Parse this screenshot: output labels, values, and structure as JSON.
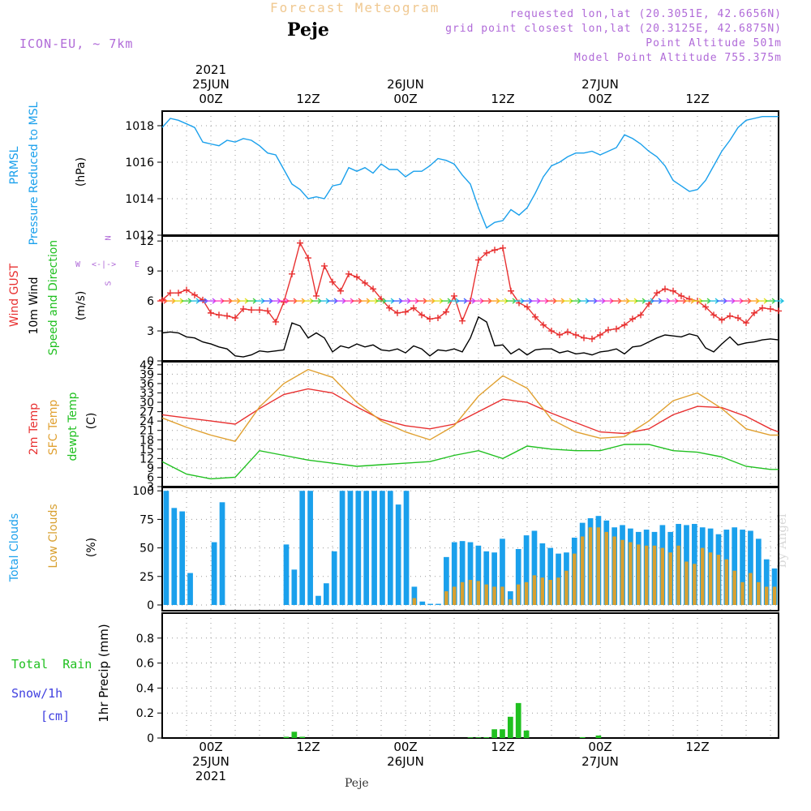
{
  "header": {
    "title_top": "Forecast Meteogram",
    "station": "Peje",
    "model": "ICON-EU, ~ 7km",
    "requested": "requested lon,lat (20.3051E, 42.6656N)",
    "grid_point": "grid point closest lon,lat (20.3125E, 42.6875N)",
    "point_altitude": "Point Altitude 501m",
    "model_altitude": "Model Point Altitude 755.375m"
  },
  "footer": {
    "station": "Peje",
    "credit": "by Angel"
  },
  "time_axis": {
    "top": [
      {
        "label": [
          "2021",
          "25JUN",
          "00Z"
        ],
        "h": 6
      },
      {
        "label": [
          "12Z"
        ],
        "h": 18
      },
      {
        "label": [
          "26JUN",
          "00Z"
        ],
        "h": 30
      },
      {
        "label": [
          "12Z"
        ],
        "h": 42
      },
      {
        "label": [
          "27JUN",
          "00Z"
        ],
        "h": 54
      },
      {
        "label": [
          "12Z"
        ],
        "h": 66
      }
    ],
    "bottom": [
      {
        "label": [
          "00Z",
          "25JUN",
          "2021"
        ],
        "h": 6
      },
      {
        "label": [
          "12Z"
        ],
        "h": 18
      },
      {
        "label": [
          "00Z",
          "26JUN"
        ],
        "h": 30
      },
      {
        "label": [
          "12Z"
        ],
        "h": 42
      },
      {
        "label": [
          "00Z",
          "27JUN"
        ],
        "h": 54
      },
      {
        "label": [
          "12Z"
        ],
        "h": 66
      }
    ]
  },
  "panel_labels": {
    "pressure": [
      {
        "text": "PRMSL",
        "color": "#1aa0ec"
      },
      {
        "text": "Pressure Reduced to MSL",
        "color": "#1aa0ec"
      },
      {
        "text": "(hPa)",
        "color": "#000000"
      }
    ],
    "wind": [
      {
        "text": "Wind GUST",
        "color": "#e83030"
      },
      {
        "text": "10m Wind",
        "color": "#000000"
      },
      {
        "text": "Speed and Direction",
        "color": "#20c020"
      },
      {
        "text": "(m/s)",
        "color": "#000000"
      }
    ],
    "wind_compass": {
      "top": "N",
      "left": "W",
      "arrow": "<-|->",
      "right": "E",
      "bottom": "S"
    },
    "temp": [
      {
        "text": "2m Temp",
        "color": "#e83030"
      },
      {
        "text": "SFC Temp",
        "color": "#e0a030"
      },
      {
        "text": "dewpt Temp",
        "color": "#20c020"
      },
      {
        "text": "(C)",
        "color": "#000000"
      }
    ],
    "clouds": [
      {
        "text": "Total Clouds",
        "color": "#1aa0ec"
      },
      {
        "text": "Low Clouds",
        "color": "#d8a030"
      },
      {
        "text": "(%)",
        "color": "#000000"
      }
    ],
    "precip_left": [
      {
        "text": "Total  Rain",
        "color": "#20c020"
      },
      {
        "text": "Snow/1h",
        "color": "#4040e0"
      },
      {
        "text": "[cm]",
        "color": "#4040e0"
      }
    ],
    "precip_axis": "1hr Precip (mm)"
  },
  "chart_data": [
    {
      "type": "line",
      "panel": "pressure",
      "x_unit": "hours since 2021-06-24 18Z",
      "y_ticks": [
        1012,
        1014,
        1016,
        1018
      ],
      "ylim": [
        1012,
        1018.8
      ],
      "series": [
        {
          "name": "PRMSL",
          "color": "#1aa0ec",
          "x": [
            0,
            1,
            2,
            3,
            4,
            5,
            6,
            7,
            8,
            9,
            10,
            11,
            12,
            13,
            14,
            15,
            16,
            17,
            18,
            19,
            20,
            21,
            22,
            23,
            24,
            25,
            26,
            27,
            28,
            29,
            30,
            31,
            32,
            33,
            34,
            35,
            36,
            37,
            38,
            39,
            40,
            41,
            42,
            43,
            44,
            45,
            46,
            47,
            48,
            49,
            50,
            51,
            52,
            53,
            54,
            55,
            56,
            57,
            58,
            59,
            60,
            61,
            62,
            63,
            64,
            65,
            66,
            67,
            68,
            69,
            70,
            71,
            72,
            73,
            74,
            75,
            76
          ],
          "y": [
            1017.9,
            1018.4,
            1018.3,
            1018.1,
            1017.9,
            1017.1,
            1017.0,
            1016.9,
            1017.2,
            1017.1,
            1017.3,
            1017.2,
            1016.9,
            1016.5,
            1016.4,
            1015.6,
            1014.8,
            1014.5,
            1014.0,
            1014.1,
            1014.0,
            1014.7,
            1014.8,
            1015.7,
            1015.5,
            1015.7,
            1015.4,
            1015.9,
            1015.6,
            1015.6,
            1015.2,
            1015.5,
            1015.5,
            1015.8,
            1016.2,
            1016.1,
            1015.9,
            1015.3,
            1014.8,
            1013.5,
            1012.4,
            1012.7,
            1012.8,
            1013.4,
            1013.1,
            1013.5,
            1014.3,
            1015.2,
            1015.8,
            1016.0,
            1016.3,
            1016.5,
            1016.5,
            1016.6,
            1016.4,
            1016.6,
            1016.8,
            1017.5,
            1017.3,
            1017.0,
            1016.6,
            1016.3,
            1015.8,
            1015.0,
            1014.7,
            1014.4,
            1014.5,
            1015.0,
            1015.8,
            1016.6,
            1017.2,
            1017.9,
            1018.3,
            1018.4,
            1018.5,
            1018.5,
            1018.5
          ]
        }
      ]
    },
    {
      "type": "line",
      "panel": "wind",
      "y_ticks": [
        0,
        3,
        6,
        9,
        12
      ],
      "ylim": [
        0,
        12.5
      ],
      "series": [
        {
          "name": "Wind GUST",
          "color": "#e83030",
          "marker": "+",
          "x": [
            0,
            1,
            2,
            3,
            4,
            5,
            6,
            7,
            8,
            9,
            10,
            11,
            12,
            13,
            14,
            15,
            16,
            17,
            18,
            19,
            20,
            21,
            22,
            23,
            24,
            25,
            26,
            27,
            28,
            29,
            30,
            31,
            32,
            33,
            34,
            35,
            36,
            37,
            38,
            39,
            40,
            41,
            42,
            43,
            44,
            45,
            46,
            47,
            48,
            49,
            50,
            51,
            52,
            53,
            54,
            55,
            56,
            57,
            58,
            59,
            60,
            61,
            62,
            63,
            64,
            65,
            66,
            67,
            68,
            69,
            70,
            71,
            72,
            73,
            74,
            75,
            76
          ],
          "y": [
            6.1,
            6.8,
            6.8,
            7.1,
            6.6,
            6.1,
            4.8,
            4.6,
            4.5,
            4.3,
            5.2,
            5.1,
            5.1,
            5.0,
            3.9,
            5.9,
            8.7,
            11.8,
            10.3,
            6.5,
            9.5,
            7.9,
            7.0,
            8.7,
            8.4,
            7.8,
            7.2,
            6.2,
            5.3,
            4.8,
            4.9,
            5.3,
            4.6,
            4.2,
            4.3,
            4.9,
            6.5,
            4.0,
            6.0,
            10.1,
            10.8,
            11.1,
            11.3,
            7.0,
            5.8,
            5.4,
            4.4,
            3.6,
            3.0,
            2.6,
            2.9,
            2.6,
            2.3,
            2.2,
            2.6,
            3.1,
            3.2,
            3.6,
            4.2,
            4.6,
            5.7,
            6.8,
            7.2,
            7.0,
            6.5,
            6.2,
            6.0,
            5.4,
            4.6,
            4.1,
            4.5,
            4.3,
            3.8,
            4.8,
            5.3,
            5.2,
            5.0
          ]
        },
        {
          "name": "10m Wind",
          "color": "#000000",
          "x": [
            0,
            1,
            2,
            3,
            4,
            5,
            6,
            7,
            8,
            9,
            10,
            11,
            12,
            13,
            14,
            15,
            16,
            17,
            18,
            19,
            20,
            21,
            22,
            23,
            24,
            25,
            26,
            27,
            28,
            29,
            30,
            31,
            32,
            33,
            34,
            35,
            36,
            37,
            38,
            39,
            40,
            41,
            42,
            43,
            44,
            45,
            46,
            47,
            48,
            49,
            50,
            51,
            52,
            53,
            54,
            55,
            56,
            57,
            58,
            59,
            60,
            61,
            62,
            63,
            64,
            65,
            66,
            67,
            68,
            69,
            70,
            71,
            72,
            73,
            74,
            75,
            76
          ],
          "y": [
            2.8,
            2.9,
            2.8,
            2.4,
            2.3,
            1.9,
            1.7,
            1.4,
            1.2,
            0.5,
            0.4,
            0.6,
            1.0,
            0.9,
            1.0,
            1.1,
            3.8,
            3.5,
            2.3,
            2.8,
            2.3,
            0.9,
            1.5,
            1.3,
            1.7,
            1.4,
            1.6,
            1.1,
            1.0,
            1.2,
            0.8,
            1.5,
            1.2,
            0.5,
            1.1,
            1.0,
            1.2,
            0.9,
            2.3,
            4.4,
            3.9,
            1.5,
            1.6,
            0.7,
            1.2,
            0.6,
            1.1,
            1.2,
            1.2,
            0.8,
            1.0,
            0.7,
            0.8,
            0.6,
            0.9,
            1.0,
            1.2,
            0.7,
            1.4,
            1.5,
            1.9,
            2.3,
            2.6,
            2.5,
            2.4,
            2.7,
            2.5,
            1.3,
            0.9,
            1.7,
            2.4,
            1.6,
            1.8,
            1.9,
            2.1,
            2.2,
            2.1
          ]
        }
      ]
    },
    {
      "type": "line",
      "panel": "temperature",
      "y_ticks": [
        3,
        6,
        9,
        12,
        15,
        18,
        21,
        24,
        27,
        30,
        33,
        36,
        39,
        42
      ],
      "ylim": [
        3,
        43
      ],
      "series": [
        {
          "name": "2m Temp",
          "color": "#e83030",
          "x": [
            0,
            3,
            6,
            9,
            12,
            15,
            18,
            21,
            24,
            27,
            30,
            33,
            36,
            39,
            42,
            45,
            48,
            51,
            54,
            57,
            60,
            63,
            66,
            69,
            72,
            75,
            76
          ],
          "y": [
            26.0,
            25.0,
            24.0,
            23.0,
            28.0,
            32.5,
            34.3,
            33.0,
            28.5,
            24.5,
            22.5,
            21.5,
            23.0,
            27.0,
            31.0,
            30.0,
            26.5,
            23.5,
            20.5,
            20.0,
            21.5,
            26.0,
            28.7,
            28.3,
            25.5,
            21.5,
            20.5
          ]
        },
        {
          "name": "SFC Temp",
          "color": "#e0a030",
          "x": [
            0,
            3,
            6,
            9,
            12,
            15,
            18,
            21,
            24,
            27,
            30,
            33,
            36,
            39,
            42,
            45,
            48,
            51,
            54,
            57,
            60,
            63,
            66,
            69,
            72,
            75,
            76
          ],
          "y": [
            25.0,
            22.0,
            19.5,
            17.5,
            28.5,
            36.0,
            40.5,
            38.0,
            30.0,
            24.0,
            20.5,
            18.0,
            22.5,
            32.0,
            38.5,
            34.5,
            24.5,
            20.5,
            18.5,
            19.0,
            24.0,
            30.5,
            33.0,
            28.0,
            21.5,
            19.5,
            19.5
          ]
        },
        {
          "name": "dewpt Temp",
          "color": "#20c020",
          "x": [
            0,
            3,
            6,
            9,
            12,
            15,
            18,
            21,
            24,
            27,
            30,
            33,
            36,
            39,
            42,
            45,
            48,
            51,
            54,
            57,
            60,
            63,
            66,
            69,
            72,
            75,
            76
          ],
          "y": [
            11.0,
            7.0,
            5.5,
            6.0,
            14.5,
            13.0,
            11.5,
            10.5,
            9.5,
            10.0,
            10.5,
            11.0,
            13.0,
            14.5,
            12.0,
            16.0,
            15.0,
            14.5,
            14.5,
            16.5,
            16.5,
            14.5,
            14.0,
            12.5,
            9.5,
            8.5,
            8.5
          ]
        }
      ]
    },
    {
      "type": "bar",
      "panel": "clouds",
      "y_ticks": [
        0,
        25,
        50,
        75,
        100
      ],
      "ylim": [
        -5,
        103
      ],
      "series": [
        {
          "name": "Total Clouds",
          "color": "#1aa0ec",
          "values": [
            100,
            85,
            82,
            28,
            0,
            0,
            55,
            90,
            0,
            0,
            0,
            0,
            0,
            0,
            0,
            53,
            31,
            100,
            100,
            8,
            19,
            47,
            100,
            100,
            100,
            100,
            100,
            100,
            100,
            88,
            100,
            16,
            3,
            1,
            1,
            42,
            55,
            56,
            55,
            52,
            47,
            46,
            58,
            12,
            49,
            61,
            65,
            54,
            50,
            45,
            46,
            59,
            72,
            76,
            78,
            74,
            68,
            70,
            67,
            64,
            66,
            64,
            70,
            64,
            71,
            70,
            71,
            68,
            67,
            62,
            66,
            68,
            66,
            65,
            58,
            40,
            32
          ]
        },
        {
          "name": "Low Clouds",
          "color": "#d8a030",
          "values": [
            0,
            0,
            0,
            0,
            0,
            0,
            0,
            0,
            0,
            0,
            0,
            0,
            0,
            0,
            0,
            0,
            0,
            0,
            0,
            0,
            0,
            0,
            0,
            0,
            0,
            0,
            0,
            0,
            0,
            0,
            0,
            6,
            0,
            0,
            0,
            12,
            16,
            20,
            22,
            21,
            18,
            16,
            16,
            5,
            18,
            20,
            26,
            24,
            22,
            24,
            30,
            45,
            60,
            68,
            68,
            64,
            60,
            57,
            55,
            53,
            52,
            52,
            50,
            46,
            52,
            38,
            36,
            50,
            46,
            44,
            40,
            30,
            20,
            28,
            20,
            16,
            16
          ]
        }
      ]
    },
    {
      "type": "bar",
      "panel": "precip",
      "y_ticks": [
        0,
        0.2,
        0.4,
        0.6,
        0.8
      ],
      "ylim": [
        0,
        1.0
      ],
      "series": [
        {
          "name": "Total Rain",
          "color": "#20c020",
          "values": [
            0,
            0,
            0,
            0,
            0,
            0,
            0,
            0,
            0,
            0,
            0,
            0,
            0,
            0,
            0,
            0.01,
            0.05,
            0.01,
            0,
            0,
            0,
            0,
            0,
            0,
            0,
            0,
            0,
            0,
            0,
            0,
            0,
            0,
            0,
            0,
            0,
            0,
            0,
            0,
            0.005,
            0.005,
            0.006,
            0.07,
            0.07,
            0.17,
            0.28,
            0.06,
            0,
            0,
            0,
            0,
            0,
            0,
            0.007,
            0,
            0.02,
            0,
            0,
            0,
            0,
            0,
            0,
            0,
            0,
            0,
            0,
            0,
            0,
            0,
            0,
            0,
            0,
            0,
            0,
            0,
            0,
            0,
            0
          ]
        }
      ]
    }
  ]
}
